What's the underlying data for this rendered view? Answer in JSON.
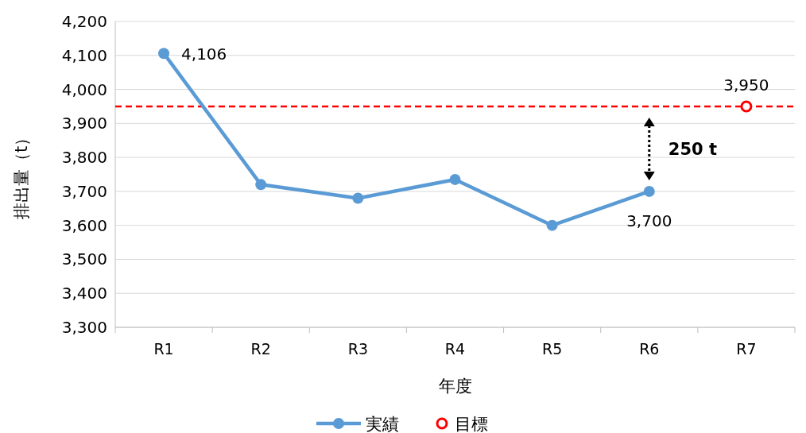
{
  "chart_data": {
    "type": "line",
    "xlabel": "年度",
    "ylabel": "排出量（t）",
    "categories": [
      "R1",
      "R2",
      "R3",
      "R4",
      "R5",
      "R6",
      "R7"
    ],
    "series": [
      {
        "name": "実績",
        "color": "#5b9bd5",
        "values": [
          4106,
          3720,
          3680,
          3735,
          3600,
          3700,
          null
        ],
        "value_labels": [
          "4,106",
          null,
          null,
          null,
          null,
          "3,700",
          null
        ]
      },
      {
        "name": "目標",
        "type": "scatter",
        "color": "#ff0000",
        "values": [
          null,
          null,
          null,
          null,
          null,
          null,
          3950
        ],
        "value_labels": [
          null,
          null,
          null,
          null,
          null,
          null,
          "3,950"
        ]
      }
    ],
    "ylim": [
      3300,
      4200
    ],
    "yticks": [
      {
        "value": 3300,
        "label": "3,300"
      },
      {
        "value": 3400,
        "label": "3,400"
      },
      {
        "value": 3500,
        "label": "3,500"
      },
      {
        "value": 3600,
        "label": "3,600"
      },
      {
        "value": 3700,
        "label": "3,700"
      },
      {
        "value": 3800,
        "label": "3,800"
      },
      {
        "value": 3900,
        "label": "3,900"
      },
      {
        "value": 4000,
        "label": "4,000"
      },
      {
        "value": 4100,
        "label": "4,100"
      },
      {
        "value": 4200,
        "label": "4,200"
      }
    ],
    "grid": "y",
    "marker": "circle",
    "legend": "bottom",
    "ref_lines": [
      {
        "axis": "y",
        "value": 3950,
        "color": "#ff0000",
        "line_style": "dashed"
      }
    ],
    "annotations": [
      "250 t"
    ]
  }
}
